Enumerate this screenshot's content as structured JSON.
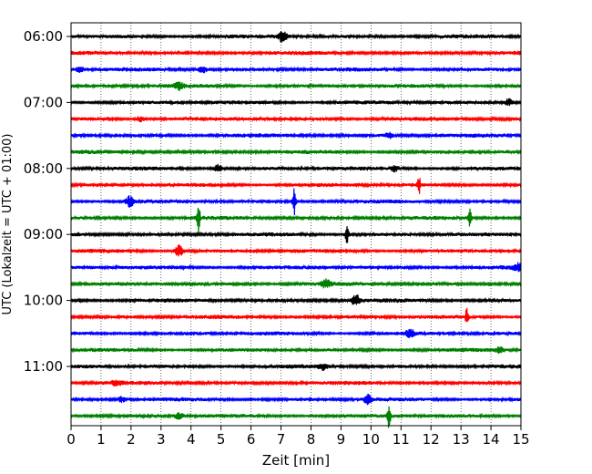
{
  "chart_data": {
    "type": "line",
    "xlabel": "Zeit  [min]",
    "ylabel": "UTC (Lokalzeit = UTC + 01:00)",
    "xlim": [
      0,
      15
    ],
    "x_ticks": [
      0,
      1,
      2,
      3,
      4,
      5,
      6,
      7,
      8,
      9,
      10,
      11,
      12,
      13,
      14,
      15
    ],
    "y_ticks": [
      {
        "row": 0,
        "label": "06:00"
      },
      {
        "row": 4,
        "label": "07:00"
      },
      {
        "row": 8,
        "label": "08:00"
      },
      {
        "row": 12,
        "label": "09:00"
      },
      {
        "row": 16,
        "label": "10:00"
      },
      {
        "row": 20,
        "label": "11:00"
      }
    ],
    "grid": "vertical dotted at each minute",
    "trace_colors": [
      "#000000",
      "#ff0000",
      "#0000ff",
      "#008000"
    ],
    "traces": [
      {
        "start": "06:00",
        "events": [
          {
            "t": 7.05,
            "amp": 6
          }
        ]
      },
      {
        "start": "06:15",
        "events": []
      },
      {
        "start": "06:30",
        "events": [
          {
            "t": 4.4,
            "amp": 4
          },
          {
            "t": 0.3,
            "amp": 3
          }
        ]
      },
      {
        "start": "06:45",
        "events": [
          {
            "t": 3.6,
            "amp": 4
          }
        ]
      },
      {
        "start": "07:00",
        "events": [
          {
            "t": 14.6,
            "amp": 4
          }
        ]
      },
      {
        "start": "07:15",
        "events": [
          {
            "t": 2.3,
            "amp": 3
          }
        ]
      },
      {
        "start": "07:30",
        "events": [
          {
            "t": 10.6,
            "amp": 3
          }
        ]
      },
      {
        "start": "07:45",
        "events": []
      },
      {
        "start": "08:00",
        "events": [
          {
            "t": 4.9,
            "amp": 4
          },
          {
            "t": 10.8,
            "amp": 3
          }
        ]
      },
      {
        "start": "08:15",
        "events": [
          {
            "t": 11.6,
            "amp": 11
          }
        ]
      },
      {
        "start": "08:30",
        "events": [
          {
            "t": 7.45,
            "amp": 15
          },
          {
            "t": 1.95,
            "amp": 6
          }
        ]
      },
      {
        "start": "08:45",
        "events": [
          {
            "t": 4.25,
            "amp": 16
          },
          {
            "t": 13.3,
            "amp": 10
          }
        ]
      },
      {
        "start": "09:00",
        "events": [
          {
            "t": 9.2,
            "amp": 15
          }
        ]
      },
      {
        "start": "09:15",
        "events": [
          {
            "t": 3.6,
            "amp": 7
          }
        ]
      },
      {
        "start": "09:30",
        "events": [
          {
            "t": 14.9,
            "amp": 4
          }
        ]
      },
      {
        "start": "09:45",
        "events": [
          {
            "t": 8.5,
            "amp": 4
          }
        ]
      },
      {
        "start": "10:00",
        "events": [
          {
            "t": 9.5,
            "amp": 6
          }
        ]
      },
      {
        "start": "10:15",
        "events": [
          {
            "t": 13.2,
            "amp": 10
          }
        ]
      },
      {
        "start": "10:30",
        "events": [
          {
            "t": 11.3,
            "amp": 4
          }
        ]
      },
      {
        "start": "10:45",
        "events": [
          {
            "t": 14.3,
            "amp": 3
          }
        ]
      },
      {
        "start": "11:00",
        "events": [
          {
            "t": 8.4,
            "amp": 3
          }
        ]
      },
      {
        "start": "11:15",
        "events": [
          {
            "t": 1.5,
            "amp": 3
          }
        ]
      },
      {
        "start": "11:30",
        "events": [
          {
            "t": 9.9,
            "amp": 5
          },
          {
            "t": 1.7,
            "amp": 3
          }
        ]
      },
      {
        "start": "11:45",
        "events": [
          {
            "t": 10.6,
            "amp": 14
          },
          {
            "t": 3.6,
            "amp": 3
          }
        ]
      }
    ]
  }
}
